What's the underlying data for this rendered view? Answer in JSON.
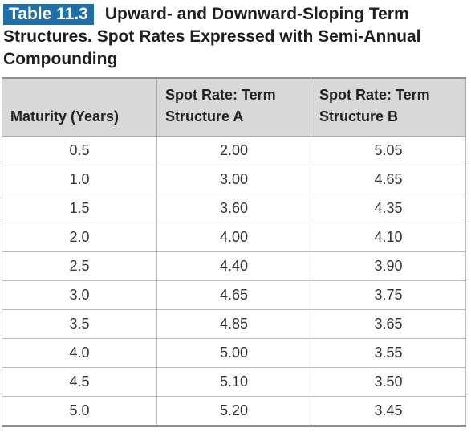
{
  "caption": {
    "label": "Table 11.3",
    "title": "Upward- and Downward-Sloping Term Structures. Spot Rates Expressed with Semi-Annual Compounding"
  },
  "table": {
    "headers": [
      "Maturity (Years)",
      "Spot Rate: Term Structure A",
      "Spot Rate: Term Structure B"
    ],
    "rows": [
      [
        "0.5",
        "2.00",
        "5.05"
      ],
      [
        "1.0",
        "3.00",
        "4.65"
      ],
      [
        "1.5",
        "3.60",
        "4.35"
      ],
      [
        "2.0",
        "4.00",
        "4.10"
      ],
      [
        "2.5",
        "4.40",
        "3.90"
      ],
      [
        "3.0",
        "4.65",
        "3.75"
      ],
      [
        "3.5",
        "4.85",
        "3.65"
      ],
      [
        "4.0",
        "5.00",
        "3.55"
      ],
      [
        "4.5",
        "5.10",
        "3.50"
      ],
      [
        "5.0",
        "5.20",
        "3.45"
      ]
    ]
  },
  "colors": {
    "label_background": "#1f6fa8",
    "header_background": "#d8d8d8"
  }
}
